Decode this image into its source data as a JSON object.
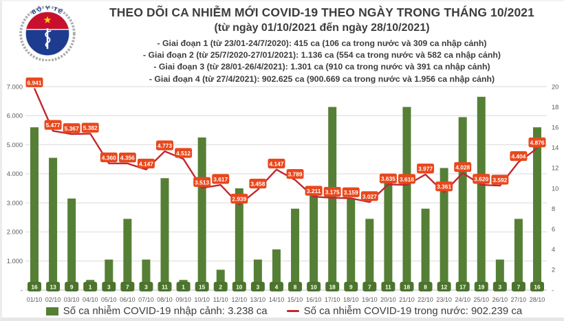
{
  "logo": {
    "name": "ministry-of-health-emblem",
    "top_text": "BỘ Y TẾ",
    "bottom_text": "MINISTRY OF HEALTH"
  },
  "header": {
    "title": "THEO DÕI CA NHIỄM MỚI COVID-19 THEO NGÀY TRONG THÁNG 10/2021",
    "subtitle": "(từ ngày 01/10/2021 đến ngày 28/10/2021)",
    "bullets": [
      "- Giai đoạn 1 (từ 23/01-24/7/2020): 415 ca (106 ca trong nước và 309 ca nhập cảnh)",
      "- Giai đoạn 2 (từ 25/7/2020-27/01/2021): 1.136 ca (554 ca trong nước và 582 ca nhập cảnh)",
      "- Giai đoạn 3 (từ 28/01-26/4/2021): 1.301 ca (910 ca trong nước và 391 ca nhập cảnh)",
      "- Giai đoạn 4 (từ 27/4/2021): 902.625 ca (900.669 ca trong nước và 1.956 ca nhập cảnh)"
    ]
  },
  "chart_data": {
    "type": "combo",
    "categories": [
      "01/10",
      "02/10",
      "03/10",
      "04/10",
      "05/10",
      "06/10",
      "07/10",
      "08/10",
      "09/10",
      "10/10",
      "11/10",
      "12/10",
      "13/10",
      "14/10",
      "15/10",
      "16/10",
      "17/10",
      "18/10",
      "19/10",
      "20/10",
      "21/10",
      "22/10",
      "23/10",
      "24/10",
      "25/10",
      "26/10",
      "27/10",
      "28/10"
    ],
    "series": [
      {
        "name": "Số ca nhiễm COVID-19 nhập cảnh",
        "type": "bar",
        "axis": "right",
        "values": [
          16,
          13,
          9,
          1,
          3,
          7,
          3,
          11,
          1,
          15,
          2,
          10,
          3,
          4,
          8,
          10,
          18,
          9,
          7,
          11,
          18,
          8,
          12,
          17,
          19,
          3,
          7,
          16
        ]
      },
      {
        "name": "Số ca nhiễm COVID-19 trong nước",
        "type": "line",
        "axis": "left",
        "values": [
          6941,
          5477,
          5367,
          5382,
          4360,
          4356,
          4147,
          4773,
          4512,
          3513,
          3617,
          2939,
          3458,
          4147,
          3789,
          3211,
          3175,
          3159,
          3027,
          3635,
          3618,
          3977,
          3361,
          4028,
          3620,
          3592,
          4404,
          4876
        ]
      }
    ],
    "left_axis": {
      "min": 0,
      "max": 7000,
      "step": 1000,
      "zero_label": "-",
      "number_format": "thousands-dot"
    },
    "right_axis": {
      "min": 0,
      "max": 20,
      "step": 2,
      "zero_label": "-"
    },
    "gridlines": "horizontal, every 1000 on left axis",
    "legend_position": "bottom",
    "data_labels": "all points labeled"
  },
  "legend": {
    "items": [
      {
        "swatch": "green-square",
        "label": "Số ca nhiễm COVID-19 nhập cảnh: 3.238 ca"
      },
      {
        "swatch": "red-line",
        "label": "Số ca nhiễm COVID-19 trong nước: 902.239 ca"
      }
    ]
  },
  "colors": {
    "bar_green": "#567f36",
    "bar_label_green": "#4c742d",
    "line_red": "#c1272d",
    "line_label_orange": "#e8481d",
    "grid": "#d9d9d9",
    "axis_line": "#bfbfbf",
    "axis_text": "#595959",
    "text_dark": "#3d3d3d",
    "emblem_red": "#c8102e",
    "emblem_blue": "#1d3c8f",
    "star_yellow": "#ffcd00",
    "wreath_gray": "#ababab"
  }
}
